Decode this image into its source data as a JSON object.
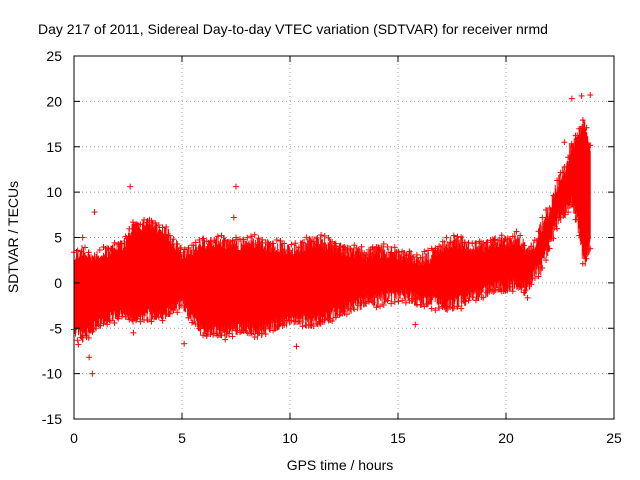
{
  "chart_data": {
    "type": "scatter",
    "title": "Day 217 of 2011, Sidereal Day-to-day VTEC variation (SDTVAR) for receiver nrmd",
    "xlabel": "GPS time / hours",
    "ylabel": "SDTVAR / TECUs",
    "xlim": [
      0,
      25
    ],
    "ylim": [
      -15,
      25
    ],
    "x_ticks": [
      0,
      5,
      10,
      15,
      20,
      25
    ],
    "y_ticks": [
      -15,
      -10,
      -5,
      0,
      5,
      10,
      15,
      20,
      25
    ],
    "grid": true,
    "series": [
      {
        "name": "SDTVAR",
        "color": "#ff0000",
        "marker": "+",
        "envelope": {
          "x": [
            0.0,
            0.3,
            0.6,
            0.9,
            1.2,
            1.6,
            2.0,
            2.4,
            2.7,
            3.0,
            3.5,
            4.0,
            4.5,
            5.0,
            5.5,
            6.0,
            6.5,
            7.0,
            7.5,
            8.0,
            8.5,
            9.0,
            9.5,
            10.0,
            10.5,
            11.0,
            11.5,
            12.0,
            12.5,
            13.0,
            13.5,
            14.0,
            14.5,
            15.0,
            15.5,
            16.0,
            16.5,
            17.0,
            17.5,
            18.0,
            18.5,
            19.0,
            19.5,
            20.0,
            20.5,
            21.0,
            21.3,
            21.6,
            22.0,
            22.4,
            22.8,
            23.0,
            23.3,
            23.6,
            23.9
          ],
          "upper": [
            3.0,
            3.5,
            3.0,
            2.5,
            3.0,
            3.5,
            4.0,
            4.5,
            6.0,
            6.0,
            6.5,
            6.0,
            5.0,
            3.0,
            3.5,
            4.5,
            4.5,
            4.5,
            4.0,
            4.5,
            4.5,
            4.0,
            4.0,
            3.5,
            4.0,
            4.5,
            4.5,
            4.0,
            3.5,
            3.5,
            3.0,
            3.5,
            3.5,
            3.0,
            3.0,
            2.5,
            3.0,
            4.0,
            4.5,
            4.5,
            4.0,
            4.0,
            4.5,
            4.5,
            5.0,
            3.5,
            4.0,
            6.0,
            8.0,
            11.0,
            13.0,
            15.0,
            16.0,
            18.0,
            15.0
          ],
          "lower": [
            -5.0,
            -6.0,
            -5.5,
            -5.0,
            -4.5,
            -4.0,
            -3.5,
            -3.0,
            -4.0,
            -3.5,
            -3.5,
            -3.5,
            -3.0,
            -2.0,
            -4.0,
            -5.5,
            -5.5,
            -5.5,
            -5.0,
            -5.0,
            -5.5,
            -5.0,
            -4.5,
            -4.0,
            -4.0,
            -4.5,
            -4.0,
            -3.5,
            -3.0,
            -2.5,
            -2.0,
            -2.0,
            -1.5,
            -1.5,
            -1.5,
            -2.0,
            -2.0,
            -2.5,
            -2.5,
            -2.0,
            -1.5,
            -1.0,
            -0.5,
            -0.5,
            0.0,
            -1.0,
            1.0,
            1.5,
            4.0,
            7.0,
            8.0,
            9.0,
            7.0,
            2.0,
            4.0
          ]
        },
        "outliers": [
          {
            "x": 0.2,
            "y": -6.8
          },
          {
            "x": 0.4,
            "y": 5.0
          },
          {
            "x": 0.7,
            "y": -8.2
          },
          {
            "x": 0.85,
            "y": -10.0
          },
          {
            "x": 0.95,
            "y": 7.8
          },
          {
            "x": 2.6,
            "y": 10.6
          },
          {
            "x": 2.75,
            "y": -5.5
          },
          {
            "x": 5.1,
            "y": -6.7
          },
          {
            "x": 7.5,
            "y": 10.6
          },
          {
            "x": 7.4,
            "y": 7.2
          },
          {
            "x": 7.5,
            "y": 5.0
          },
          {
            "x": 10.3,
            "y": -7.0
          },
          {
            "x": 15.8,
            "y": -4.6
          },
          {
            "x": 18.6,
            "y": 3.6
          },
          {
            "x": 20.9,
            "y": -0.8
          },
          {
            "x": 21.1,
            "y": 0.5
          },
          {
            "x": 23.05,
            "y": 20.3
          },
          {
            "x": 23.5,
            "y": 20.6
          },
          {
            "x": 23.9,
            "y": 20.7
          },
          {
            "x": 22.7,
            "y": 15.5
          }
        ]
      }
    ]
  }
}
